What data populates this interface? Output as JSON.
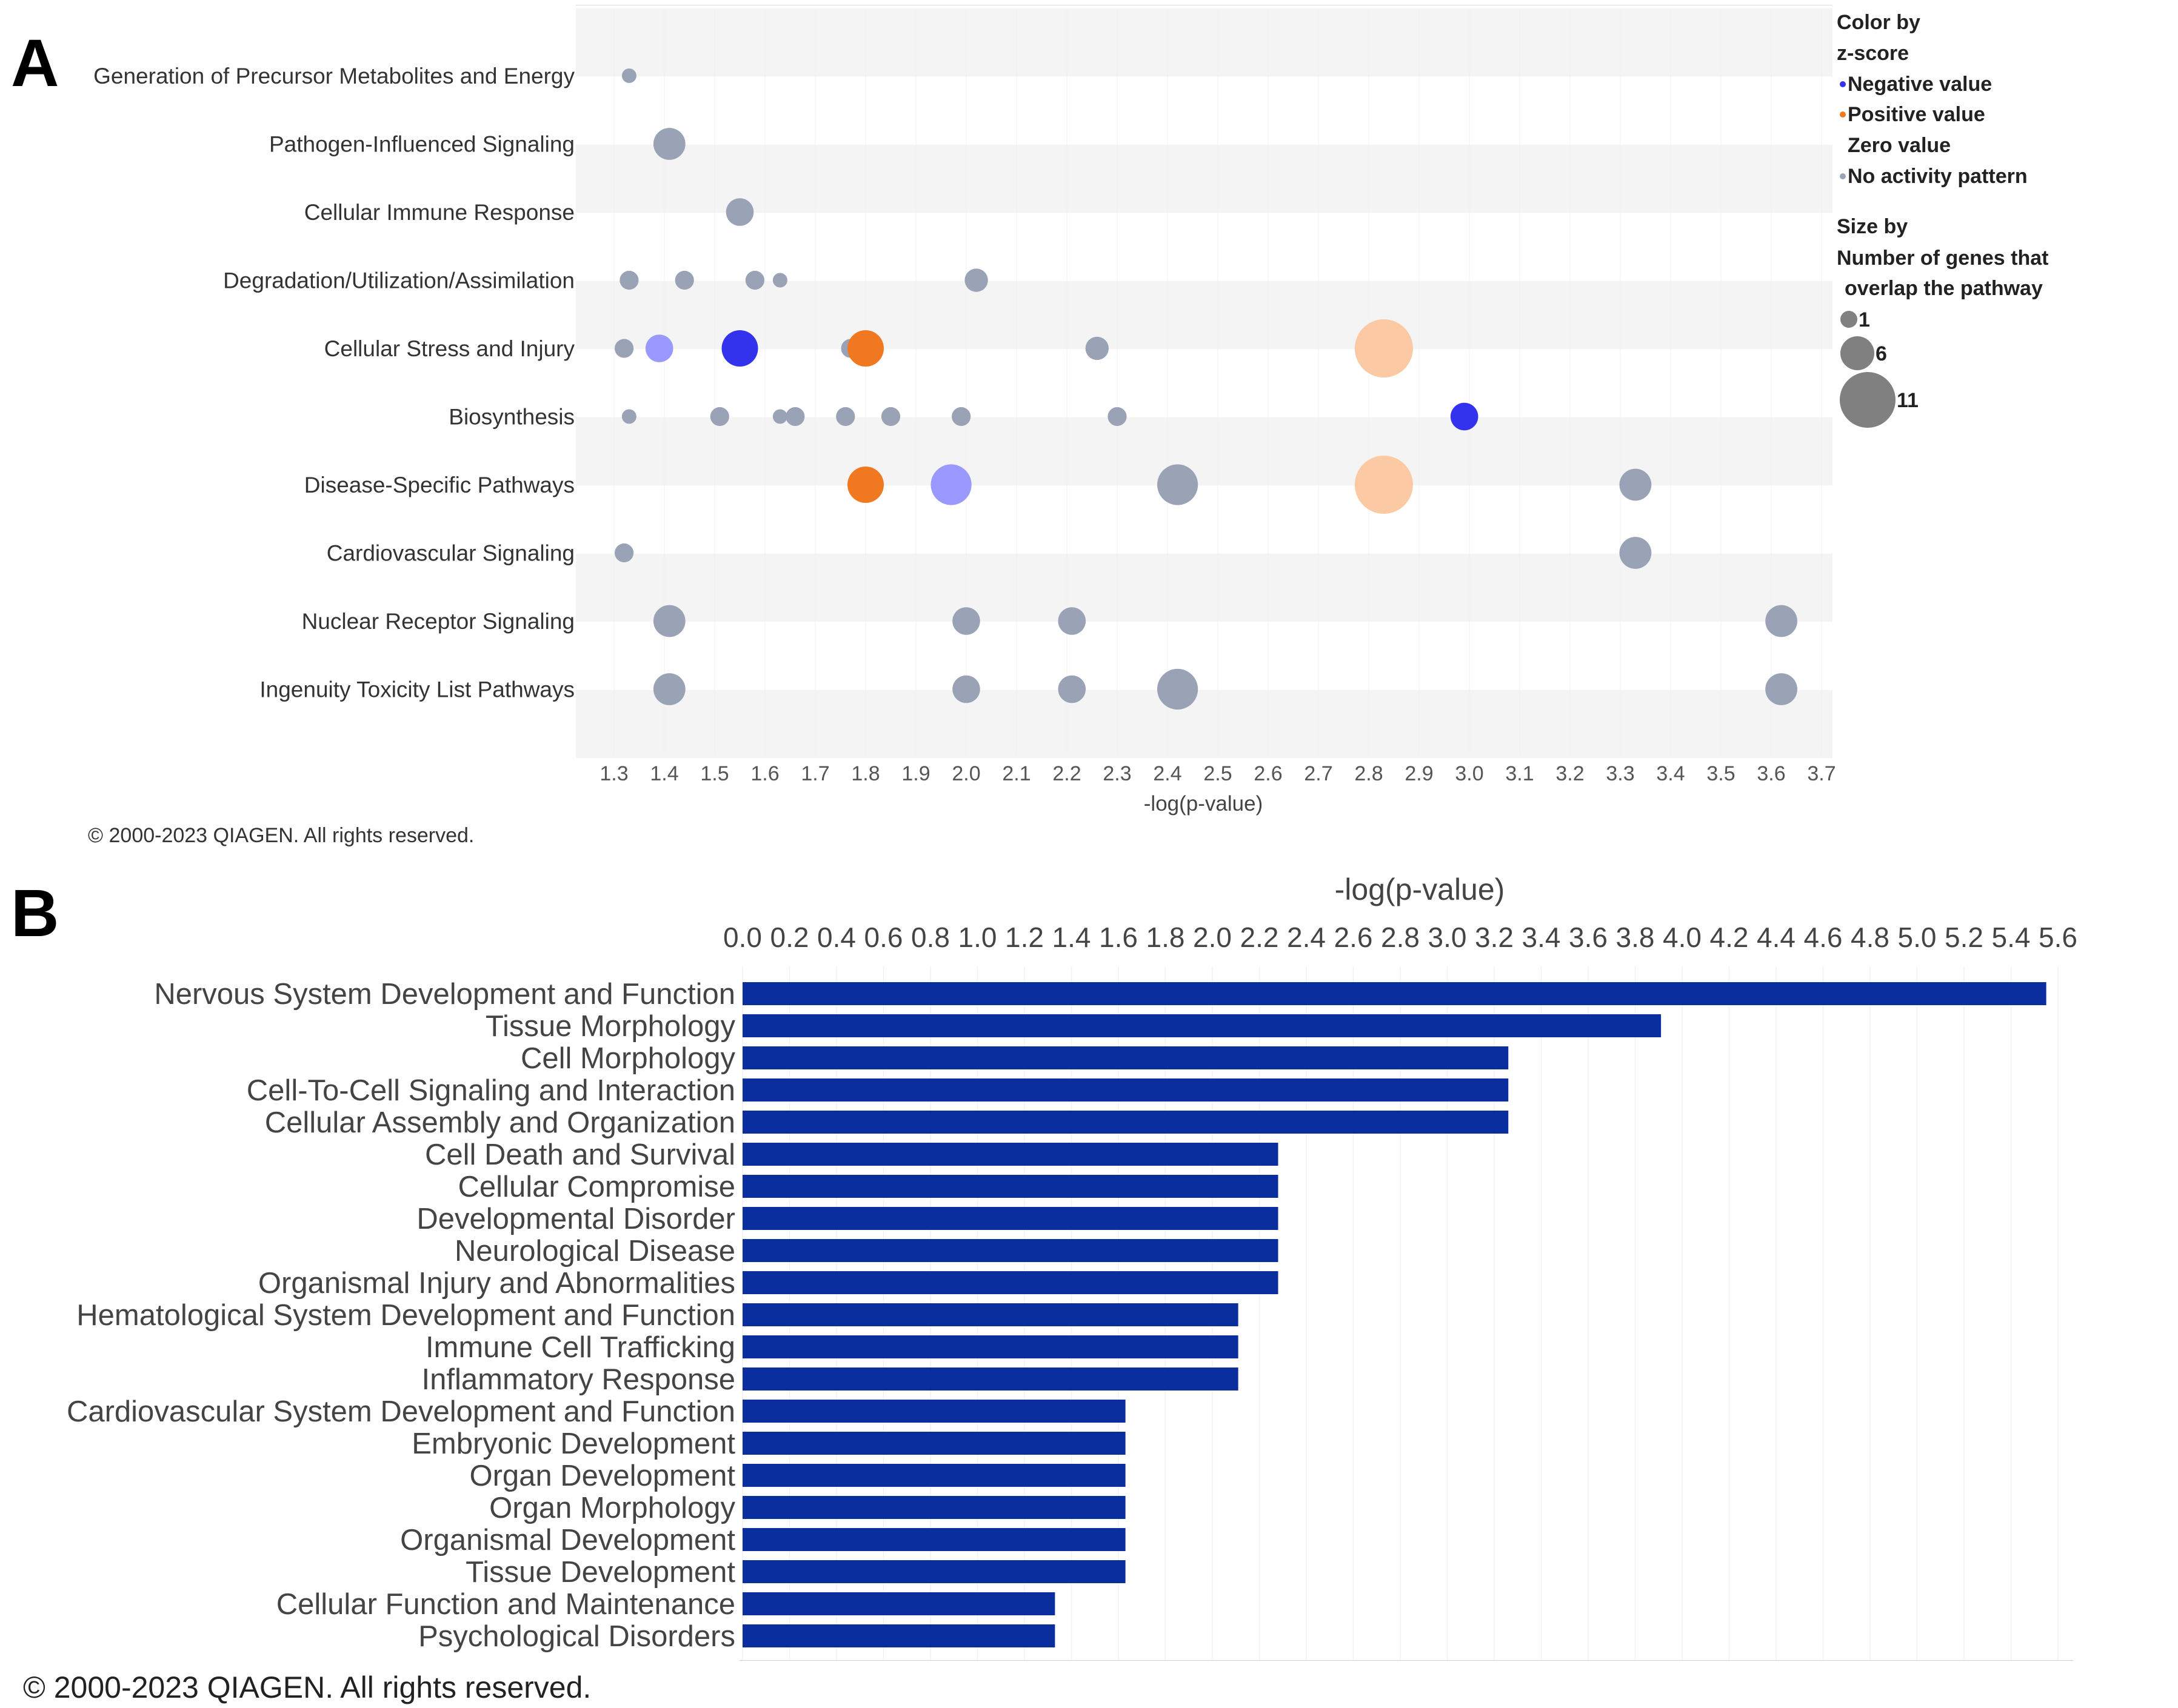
{
  "chart_data": [
    {
      "panel": "A",
      "type": "scatter",
      "subtype": "bubble",
      "xlabel": "-log(p-value)",
      "xlim": [
        1.25,
        3.75
      ],
      "x_ticks": [
        "1.3",
        "1.4",
        "1.5",
        "1.6",
        "1.7",
        "1.8",
        "1.9",
        "2.0",
        "2.1",
        "2.2",
        "2.3",
        "2.4",
        "2.5",
        "2.6",
        "2.7",
        "2.8",
        "2.9",
        "3.0",
        "3.1",
        "3.2",
        "3.3",
        "3.4",
        "3.5",
        "3.6",
        "3.7"
      ],
      "categories": [
        "Generation of Precursor Metabolites and Energy",
        "Pathogen-Influenced Signaling",
        "Cellular Immune Response",
        "Degradation/Utilization/Assimilation",
        "Cellular Stress and Injury",
        "Biosynthesis",
        "Disease-Specific Pathways",
        "Cardiovascular Signaling",
        "Nuclear Receptor Signaling",
        "Ingenuity Toxicity List Pathways"
      ],
      "colors": {
        "negative_strong": "#3333ee",
        "negative_light": "#9999ff",
        "positive_strong": "#f07820",
        "positive_light": "#fbc9a3",
        "none": "#9aa3b5",
        "legend_size": "#808080"
      },
      "points": [
        {
          "cat": 0,
          "x": 1.33,
          "size": 1,
          "color": "none"
        },
        {
          "cat": 1,
          "x": 1.41,
          "size": 5,
          "color": "none"
        },
        {
          "cat": 2,
          "x": 1.55,
          "size": 4,
          "color": "none"
        },
        {
          "cat": 3,
          "x": 1.33,
          "size": 2,
          "color": "none"
        },
        {
          "cat": 3,
          "x": 1.44,
          "size": 2,
          "color": "none"
        },
        {
          "cat": 3,
          "x": 1.58,
          "size": 2,
          "color": "none"
        },
        {
          "cat": 3,
          "x": 1.63,
          "size": 1,
          "color": "none"
        },
        {
          "cat": 3,
          "x": 2.02,
          "size": 3,
          "color": "none"
        },
        {
          "cat": 4,
          "x": 1.32,
          "size": 2,
          "color": "none"
        },
        {
          "cat": 4,
          "x": 1.39,
          "size": 4,
          "color": "negative_light"
        },
        {
          "cat": 4,
          "x": 1.55,
          "size": 6,
          "color": "negative_strong"
        },
        {
          "cat": 4,
          "x": 1.77,
          "size": 2,
          "color": "none"
        },
        {
          "cat": 4,
          "x": 1.8,
          "size": 6,
          "color": "positive_strong"
        },
        {
          "cat": 4,
          "x": 2.26,
          "size": 3,
          "color": "none"
        },
        {
          "cat": 4,
          "x": 2.83,
          "size": 11,
          "color": "positive_light"
        },
        {
          "cat": 5,
          "x": 1.33,
          "size": 1,
          "color": "none"
        },
        {
          "cat": 5,
          "x": 1.51,
          "size": 2,
          "color": "none"
        },
        {
          "cat": 5,
          "x": 1.63,
          "size": 1,
          "color": "none"
        },
        {
          "cat": 5,
          "x": 1.66,
          "size": 2,
          "color": "none"
        },
        {
          "cat": 5,
          "x": 1.76,
          "size": 2,
          "color": "none"
        },
        {
          "cat": 5,
          "x": 1.85,
          "size": 2,
          "color": "none"
        },
        {
          "cat": 5,
          "x": 1.99,
          "size": 2,
          "color": "none"
        },
        {
          "cat": 5,
          "x": 2.3,
          "size": 2,
          "color": "none"
        },
        {
          "cat": 5,
          "x": 2.99,
          "size": 4,
          "color": "negative_strong"
        },
        {
          "cat": 6,
          "x": 1.8,
          "size": 6,
          "color": "positive_strong"
        },
        {
          "cat": 6,
          "x": 1.97,
          "size": 7,
          "color": "negative_light"
        },
        {
          "cat": 6,
          "x": 2.42,
          "size": 7,
          "color": "none"
        },
        {
          "cat": 6,
          "x": 2.83,
          "size": 11,
          "color": "positive_light"
        },
        {
          "cat": 6,
          "x": 3.33,
          "size": 5,
          "color": "none"
        },
        {
          "cat": 7,
          "x": 1.32,
          "size": 2,
          "color": "none"
        },
        {
          "cat": 7,
          "x": 3.33,
          "size": 5,
          "color": "none"
        },
        {
          "cat": 8,
          "x": 1.41,
          "size": 5,
          "color": "none"
        },
        {
          "cat": 8,
          "x": 2.0,
          "size": 4,
          "color": "none"
        },
        {
          "cat": 8,
          "x": 2.21,
          "size": 4,
          "color": "none"
        },
        {
          "cat": 8,
          "x": 3.62,
          "size": 5,
          "color": "none"
        },
        {
          "cat": 9,
          "x": 1.41,
          "size": 5,
          "color": "none"
        },
        {
          "cat": 9,
          "x": 2.0,
          "size": 4,
          "color": "none"
        },
        {
          "cat": 9,
          "x": 2.21,
          "size": 4,
          "color": "none"
        },
        {
          "cat": 9,
          "x": 2.42,
          "size": 7,
          "color": "none"
        },
        {
          "cat": 9,
          "x": 3.62,
          "size": 5,
          "color": "none"
        }
      ],
      "legend": {
        "color_title_1": "Color by",
        "color_title_2": "z-score",
        "negative": "Negative value",
        "positive": "Positive value",
        "zero": "Zero value",
        "none": "No activity pattern",
        "size_title_1": "Size by",
        "size_title_2": "Number of genes that",
        "size_title_3": "overlap the pathway",
        "size_items": [
          {
            "value": 1,
            "label": "1"
          },
          {
            "value": 6,
            "label": "6"
          },
          {
            "value": 11,
            "label": "11"
          }
        ]
      }
    },
    {
      "panel": "B",
      "type": "bar",
      "orientation": "horizontal",
      "xlabel": "-log(p-value)",
      "xlim": [
        0,
        5.7
      ],
      "x_ticks": [
        "0.0",
        "0.2",
        "0.4",
        "0.6",
        "0.8",
        "1.0",
        "1.2",
        "1.4",
        "1.6",
        "1.8",
        "2.0",
        "2.2",
        "2.4",
        "2.6",
        "2.8",
        "3.0",
        "3.2",
        "3.4",
        "3.6",
        "3.8",
        "4.0",
        "4.2",
        "4.4",
        "4.6",
        "4.8",
        "5.0",
        "5.2",
        "5.4",
        "5.6"
      ],
      "bar_color": "#0a2e9e",
      "categories": [
        "Nervous System Development and Function",
        "Tissue Morphology",
        "Cell Morphology",
        "Cell-To-Cell Signaling and Interaction",
        "Cellular Assembly and Organization",
        "Cell Death and Survival",
        "Cellular Compromise",
        "Developmental Disorder",
        "Neurological Disease",
        "Organismal Injury and Abnormalities",
        "Hematological System Development and Function",
        "Immune Cell Trafficking",
        "Inflammatory Response",
        "Cardiovascular System Development and Function",
        "Embryonic Development",
        "Organ Development",
        "Organ Morphology",
        "Organismal Development",
        "Tissue Development",
        "Cellular Function and Maintenance",
        "Psychological Disorders"
      ],
      "values": [
        5.55,
        3.91,
        3.26,
        3.26,
        3.26,
        2.28,
        2.28,
        2.28,
        2.28,
        2.28,
        2.11,
        2.11,
        2.11,
        1.63,
        1.63,
        1.63,
        1.63,
        1.63,
        1.63,
        1.33,
        1.33
      ]
    }
  ],
  "labels": {
    "panel_a": "A",
    "panel_b": "B",
    "copyright_a": "© 2000-2023 QIAGEN. All rights reserved.",
    "copyright_b": "© 2000-2023 QIAGEN. All rights reserved."
  }
}
